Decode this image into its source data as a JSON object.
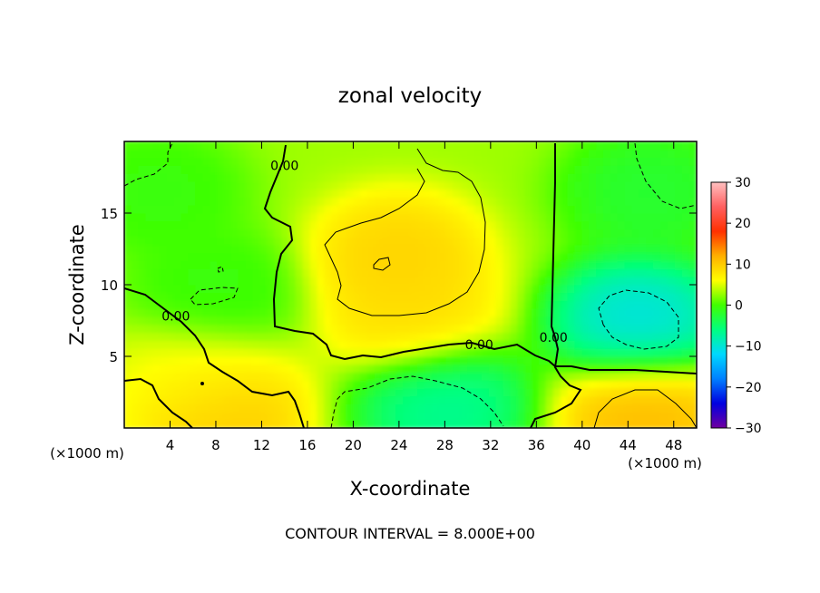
{
  "chart_data": {
    "type": "heatmap",
    "title": "zonal velocity",
    "xlabel": "X-coordinate",
    "ylabel": "Z-coordinate",
    "x_unit_left": "(×1000 m)",
    "x_unit_right": "(×1000 m)",
    "footer": "CONTOUR INTERVAL = 8.000E+00",
    "xlim": [
      0,
      50
    ],
    "ylim": [
      0,
      20
    ],
    "x_ticks": [
      4,
      8,
      12,
      16,
      20,
      24,
      28,
      32,
      36,
      40,
      44,
      48
    ],
    "y_ticks": [
      5,
      10,
      15
    ],
    "colorbar": {
      "min": -30,
      "max": 30,
      "ticks": [
        30,
        20,
        10,
        0,
        -10,
        -20,
        -30
      ],
      "colors": [
        "#7000a0",
        "#0000e0",
        "#0080ff",
        "#00d8ff",
        "#00ff80",
        "#40ff00",
        "#ffff00",
        "#ffb000",
        "#ff3000",
        "#ff6060",
        "#ffc0c0"
      ]
    },
    "background_value": 3,
    "features": [
      {
        "name": "upper jet core",
        "x": 24,
        "z": 12,
        "value": 10
      },
      {
        "name": "jet arm",
        "x": 25,
        "z": 8,
        "value": 9
      },
      {
        "name": "near-surface reversal",
        "x": 28,
        "z": 1.5,
        "value": -8
      },
      {
        "name": "right mid-level reversal",
        "x": 45,
        "z": 7.5,
        "value": -12
      },
      {
        "name": "upper right reversal",
        "x": 46,
        "z": 16.5,
        "value": -3
      },
      {
        "name": "lower right jet",
        "x": 45.5,
        "z": 1,
        "value": 12
      },
      {
        "name": "lower left jet",
        "x": 8.5,
        "z": 1,
        "value": 11
      },
      {
        "name": "lower left band",
        "x": 6,
        "z": 3.5,
        "value": 6
      },
      {
        "name": "upper left minimum",
        "x": 3,
        "z": 16.5,
        "value": -1
      },
      {
        "name": "left mid minimum",
        "x": 8,
        "z": 9.5,
        "value": -1
      }
    ],
    "contour_labels": [
      {
        "text": "0.00",
        "x": 14,
        "z": 18
      },
      {
        "text": "0.00",
        "x": 4.5,
        "z": 7.5
      },
      {
        "text": "0.00",
        "x": 31,
        "z": 5.5
      },
      {
        "text": "0.00",
        "x": 37.5,
        "z": 6
      }
    ]
  }
}
